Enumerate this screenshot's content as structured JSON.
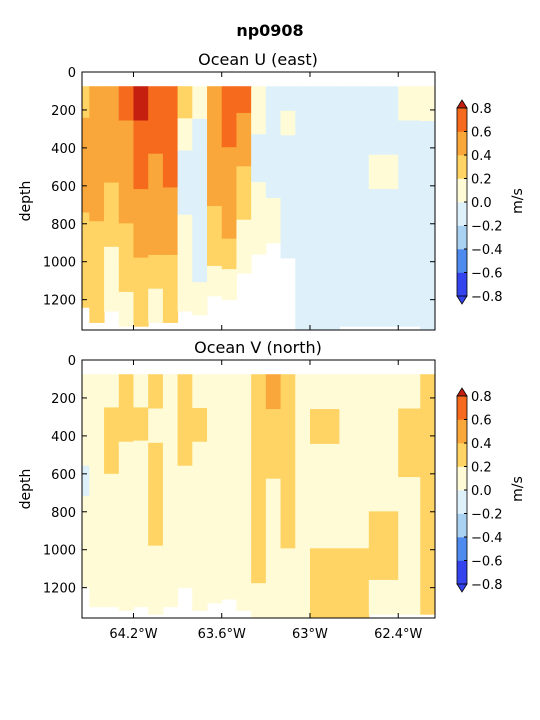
{
  "suptitle": "np0908",
  "colors": [
    "#3344ee",
    "#4f8bef",
    "#a9d1f2",
    "#def1fa",
    "#fffbd6",
    "#ffd364",
    "#f9a63b",
    "#f66a1d",
    "#c51f10"
  ],
  "chart_data": [
    {
      "type": "heatmap",
      "title": "Ocean U (east)",
      "ylabel": "depth",
      "ylim": [
        1360,
        0
      ],
      "yticks": [
        "0",
        "200",
        "400",
        "600",
        "800",
        "1000",
        "1200"
      ],
      "ytick_values": [
        0,
        200,
        400,
        600,
        800,
        1000,
        1200
      ],
      "xlim": [
        -64.55,
        -62.15
      ],
      "xtick_values": [
        -64.2,
        -63.6,
        -63.0,
        -62.4
      ],
      "xticks": [],
      "colorbar": {
        "label": "m/s",
        "levels": [
          -0.8,
          -0.6,
          -0.4,
          -0.2,
          0.0,
          0.2,
          0.4,
          0.6,
          0.8
        ],
        "tick_labels": [
          "−0.8",
          "−0.6",
          "−0.4",
          "−0.2",
          "0.0",
          "0.2",
          "0.4",
          "0.6",
          "0.8"
        ]
      },
      "data_top_depth": 75,
      "columns": [
        {
          "x0": -64.55,
          "x1": -64.5,
          "bottom": 1240,
          "values": [
            5,
            6,
            6,
            6,
            5,
            5,
            5
          ]
        },
        {
          "x0": -64.5,
          "x1": -64.4,
          "bottom": 1320,
          "values": [
            6,
            6,
            6,
            6,
            5,
            5,
            5
          ]
        },
        {
          "x0": -64.4,
          "x1": -64.3,
          "bottom": 1260,
          "values": [
            6,
            6,
            6,
            5,
            5,
            4,
            4
          ]
        },
        {
          "x0": -64.3,
          "x1": -64.2,
          "bottom": 1340,
          "values": [
            7,
            6,
            6,
            6,
            5,
            5,
            4
          ]
        },
        {
          "x0": -64.2,
          "x1": -64.1,
          "bottom": 1340,
          "values": [
            8,
            7,
            7,
            6,
            6,
            5,
            5
          ]
        },
        {
          "x0": -64.1,
          "x1": -64.0,
          "bottom": 1320,
          "values": [
            7,
            7,
            6,
            6,
            6,
            5,
            4
          ]
        },
        {
          "x0": -64.0,
          "x1": -63.9,
          "bottom": 1320,
          "values": [
            7,
            7,
            7,
            6,
            6,
            5,
            5
          ]
        },
        {
          "x0": -63.9,
          "x1": -63.8,
          "bottom": 1260,
          "values": [
            5,
            4,
            3,
            3,
            4,
            4,
            4
          ]
        },
        {
          "x0": -63.8,
          "x1": -63.7,
          "bottom": 1280,
          "values": [
            4,
            3,
            3,
            3,
            3,
            3,
            4
          ]
        },
        {
          "x0": -63.7,
          "x1": -63.6,
          "bottom": 1180,
          "values": [
            6,
            6,
            6,
            6,
            5,
            5,
            4
          ]
        },
        {
          "x0": -63.6,
          "x1": -63.5,
          "bottom": 1200,
          "values": [
            7,
            7,
            6,
            6,
            6,
            5,
            4
          ]
        },
        {
          "x0": -63.5,
          "x1": -63.4,
          "bottom": 1060,
          "values": [
            7,
            6,
            6,
            5,
            5,
            4,
            4
          ]
        },
        {
          "x0": -63.4,
          "x1": -63.3,
          "bottom": 960,
          "values": [
            4,
            4,
            3,
            3,
            4,
            4,
            4
          ]
        },
        {
          "x0": -63.3,
          "x1": -63.2,
          "bottom": 900,
          "values": [
            3,
            3,
            3,
            3,
            3,
            4,
            4
          ]
        },
        {
          "x0": -63.2,
          "x1": -63.1,
          "bottom": 980,
          "values": [
            3,
            4,
            3,
            3,
            3,
            3,
            3
          ]
        },
        {
          "x0": -63.1,
          "x1": -63.0,
          "bottom": 1360,
          "values": [
            3,
            3,
            3,
            3,
            3,
            3,
            3
          ]
        },
        {
          "x0": -63.0,
          "x1": -62.8,
          "bottom": 1360,
          "values": [
            3,
            3,
            3,
            3,
            3,
            3,
            3
          ]
        },
        {
          "x0": -62.8,
          "x1": -62.6,
          "bottom": 1340,
          "values": [
            3,
            3,
            3,
            3,
            3,
            3,
            3
          ]
        },
        {
          "x0": -62.6,
          "x1": -62.4,
          "bottom": 1340,
          "values": [
            3,
            3,
            4,
            3,
            3,
            3,
            3
          ]
        },
        {
          "x0": -62.4,
          "x1": -62.25,
          "bottom": 1340,
          "values": [
            4,
            3,
            3,
            3,
            3,
            3,
            3
          ]
        },
        {
          "x0": -62.25,
          "x1": -62.15,
          "bottom": 1360,
          "values": [
            4,
            3,
            3,
            3,
            3,
            3,
            3
          ]
        }
      ]
    },
    {
      "type": "heatmap",
      "title": "Ocean V (north)",
      "ylabel": "depth",
      "ylim": [
        1360,
        0
      ],
      "yticks": [
        "0",
        "200",
        "400",
        "600",
        "800",
        "1000",
        "1200"
      ],
      "ytick_values": [
        0,
        200,
        400,
        600,
        800,
        1000,
        1200
      ],
      "xlim": [
        -64.55,
        -62.15
      ],
      "xtick_values": [
        -64.2,
        -63.6,
        -63.0,
        -62.4
      ],
      "xticks": [
        "64.2°W",
        "63.6°W",
        "63°W",
        "62.4°W"
      ],
      "colorbar": {
        "label": "m/s",
        "levels": [
          -0.8,
          -0.6,
          -0.4,
          -0.2,
          0.0,
          0.2,
          0.4,
          0.6,
          0.8
        ],
        "tick_labels": [
          "−0.8",
          "−0.6",
          "−0.4",
          "−0.2",
          "0.0",
          "0.2",
          "0.4",
          "0.6",
          "0.8"
        ]
      },
      "data_top_depth": 75,
      "columns": [
        {
          "x0": -64.55,
          "x1": -64.5,
          "bottom": 1200,
          "values": [
            4,
            4,
            4,
            3,
            4,
            4,
            4
          ]
        },
        {
          "x0": -64.5,
          "x1": -64.4,
          "bottom": 1300,
          "values": [
            4,
            4,
            4,
            4,
            4,
            4,
            4
          ]
        },
        {
          "x0": -64.4,
          "x1": -64.3,
          "bottom": 1300,
          "values": [
            4,
            5,
            5,
            4,
            4,
            4,
            4
          ]
        },
        {
          "x0": -64.3,
          "x1": -64.2,
          "bottom": 1320,
          "values": [
            5,
            5,
            4,
            4,
            4,
            4,
            4
          ]
        },
        {
          "x0": -64.2,
          "x1": -64.1,
          "bottom": 1300,
          "values": [
            4,
            5,
            4,
            4,
            4,
            4,
            4
          ]
        },
        {
          "x0": -64.1,
          "x1": -64.0,
          "bottom": 1340,
          "values": [
            5,
            4,
            5,
            5,
            5,
            4,
            4
          ]
        },
        {
          "x0": -64.0,
          "x1": -63.9,
          "bottom": 1300,
          "values": [
            4,
            4,
            4,
            4,
            4,
            4,
            4
          ]
        },
        {
          "x0": -63.9,
          "x1": -63.8,
          "bottom": 1200,
          "values": [
            5,
            5,
            5,
            4,
            4,
            4,
            4
          ]
        },
        {
          "x0": -63.8,
          "x1": -63.7,
          "bottom": 1320,
          "values": [
            4,
            5,
            4,
            4,
            4,
            4,
            4
          ]
        },
        {
          "x0": -63.7,
          "x1": -63.6,
          "bottom": 1280,
          "values": [
            4,
            4,
            4,
            4,
            4,
            4,
            4
          ]
        },
        {
          "x0": -63.6,
          "x1": -63.5,
          "bottom": 1260,
          "values": [
            4,
            4,
            4,
            4,
            4,
            4,
            4
          ]
        },
        {
          "x0": -63.5,
          "x1": -63.4,
          "bottom": 1320,
          "values": [
            4,
            4,
            4,
            4,
            4,
            4,
            4
          ]
        },
        {
          "x0": -63.4,
          "x1": -63.3,
          "bottom": 1360,
          "values": [
            5,
            5,
            5,
            5,
            5,
            5,
            4
          ]
        },
        {
          "x0": -63.3,
          "x1": -63.2,
          "bottom": 1360,
          "values": [
            6,
            5,
            5,
            4,
            4,
            4,
            4
          ]
        },
        {
          "x0": -63.2,
          "x1": -63.1,
          "bottom": 1360,
          "values": [
            5,
            5,
            5,
            5,
            5,
            4,
            4
          ]
        },
        {
          "x0": -63.1,
          "x1": -63.0,
          "bottom": 1360,
          "values": [
            4,
            4,
            4,
            4,
            4,
            4,
            4
          ]
        },
        {
          "x0": -63.0,
          "x1": -62.8,
          "bottom": 1360,
          "values": [
            4,
            5,
            4,
            4,
            4,
            5,
            5
          ]
        },
        {
          "x0": -62.8,
          "x1": -62.6,
          "bottom": 1360,
          "values": [
            4,
            4,
            4,
            4,
            4,
            5,
            5
          ]
        },
        {
          "x0": -62.6,
          "x1": -62.4,
          "bottom": 1340,
          "values": [
            4,
            4,
            4,
            4,
            5,
            5,
            4
          ]
        },
        {
          "x0": -62.4,
          "x1": -62.25,
          "bottom": 1340,
          "values": [
            4,
            5,
            5,
            4,
            4,
            4,
            4
          ]
        },
        {
          "x0": -62.25,
          "x1": -62.15,
          "bottom": 1340,
          "values": [
            5,
            5,
            5,
            5,
            5,
            5,
            5
          ]
        }
      ]
    }
  ]
}
